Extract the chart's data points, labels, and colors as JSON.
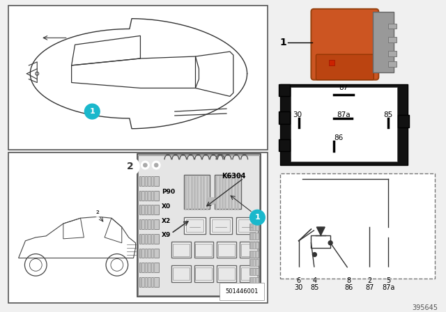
{
  "bg_color": "#f0f0f0",
  "white": "#ffffff",
  "black": "#000000",
  "dark_gray": "#1a1a1a",
  "mid_gray": "#555555",
  "light_gray": "#cccccc",
  "teal_color": "#1ab8cc",
  "orange_relay": "#cc5522",
  "orange_relay2": "#bb4411",
  "part_number": "395645",
  "diagram_number": "501446001",
  "relay_label": "K6304",
  "labels_fuse": [
    "P90",
    "X0",
    "X2",
    "X9"
  ],
  "pin_box_labels": {
    "87_label": "87",
    "30_label": "30",
    "87a_label": "87a",
    "85_label": "85",
    "86_label": "86"
  },
  "schematic_top": [
    "6",
    "4",
    "8",
    "2",
    "5"
  ],
  "schematic_bot": [
    "30",
    "85",
    "86",
    "87",
    "87a"
  ]
}
